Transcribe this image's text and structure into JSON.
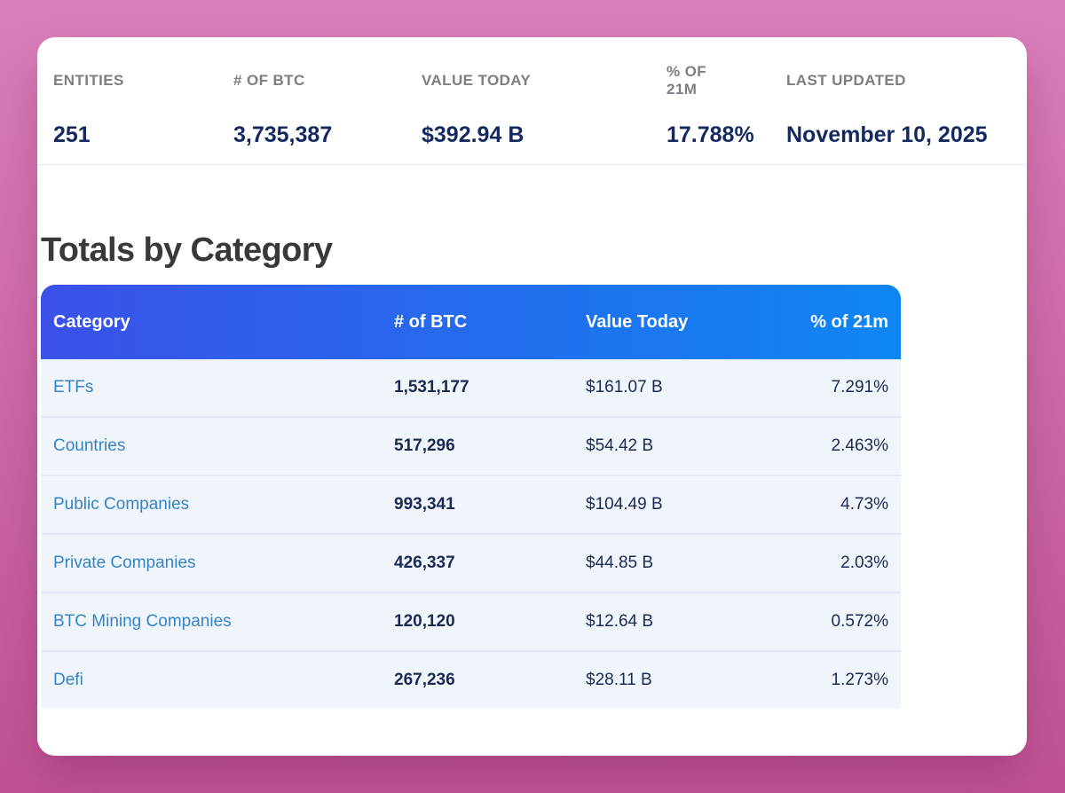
{
  "colors": {
    "page_background_top": "#d97fbb",
    "page_background_bottom": "#bf5294",
    "card_background": "#ffffff",
    "table_header_gradient_left": "#3b51e9",
    "table_header_gradient_right": "#0e86f2",
    "category_link": "#3584c6",
    "value_navy": "#1b2a55",
    "stat_value_navy": "#14295f",
    "stat_label_gray": "#7d7d83",
    "row_background": "#f0f4fb"
  },
  "stats_bar": {
    "items": [
      {
        "label": "ENTITIES",
        "value": "251"
      },
      {
        "label": "# OF BTC",
        "value": "3,735,387"
      },
      {
        "label": "VALUE TODAY",
        "value": "$392.94 B"
      },
      {
        "label": "% OF 21M",
        "value": "17.788%"
      },
      {
        "label": "LAST UPDATED",
        "value": "November 10, 2025"
      }
    ]
  },
  "section": {
    "title": "Totals by Category"
  },
  "table": {
    "columns": {
      "category": "Category",
      "btc": "# of BTC",
      "value": "Value Today",
      "pct": "% of 21m"
    },
    "rows": [
      {
        "category": "ETFs",
        "btc": "1,531,177",
        "value": "$161.07 B",
        "pct": "7.291%"
      },
      {
        "category": "Countries",
        "btc": "517,296",
        "value": "$54.42 B",
        "pct": "2.463%"
      },
      {
        "category": "Public Companies",
        "btc": "993,341",
        "value": "$104.49 B",
        "pct": "4.73%"
      },
      {
        "category": "Private Companies",
        "btc": "426,337",
        "value": "$44.85 B",
        "pct": "2.03%"
      },
      {
        "category": "BTC Mining Companies",
        "btc": "120,120",
        "value": "$12.64 B",
        "pct": "0.572%"
      },
      {
        "category": "Defi",
        "btc": "267,236",
        "value": "$28.11 B",
        "pct": "1.273%"
      }
    ]
  }
}
